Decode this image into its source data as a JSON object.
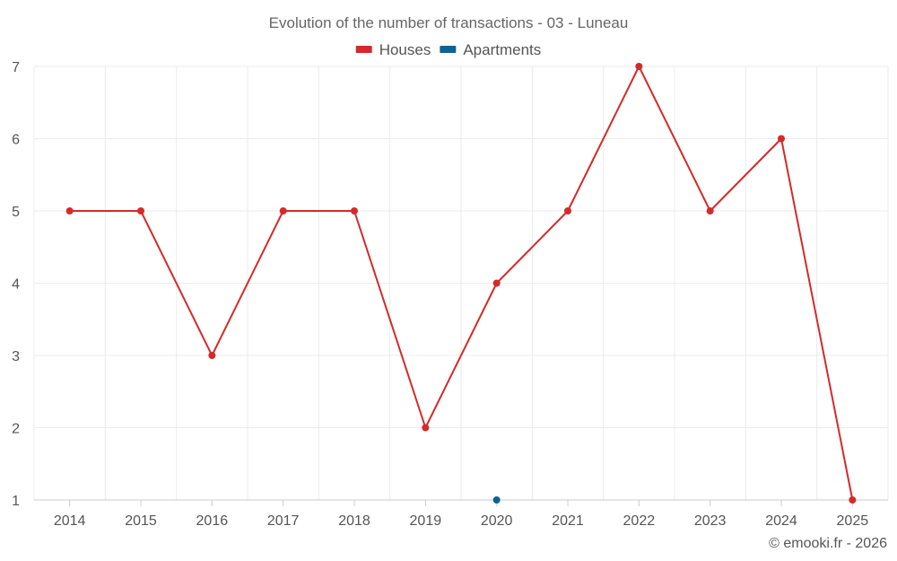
{
  "chart_data": {
    "type": "line",
    "title": "Evolution of the number of transactions - 03 - Luneau",
    "categories": [
      "2014",
      "2015",
      "2016",
      "2017",
      "2018",
      "2019",
      "2020",
      "2021",
      "2022",
      "2023",
      "2024",
      "2025"
    ],
    "ylim": [
      1,
      7
    ],
    "yticks": [
      "1",
      "2",
      "3",
      "4",
      "5",
      "6",
      "7"
    ],
    "xlabel": "",
    "ylabel": "",
    "grid": true,
    "legend_position": "top-center",
    "series": [
      {
        "name": "Houses",
        "color": "#d42a2a",
        "values": [
          5,
          5,
          3,
          5,
          5,
          2,
          4,
          5,
          7,
          5,
          6,
          1
        ]
      },
      {
        "name": "Apartments",
        "color": "#0b6496",
        "values": [
          null,
          null,
          null,
          null,
          null,
          null,
          1,
          null,
          null,
          null,
          null,
          null
        ]
      }
    ]
  },
  "credit": "© emooki.fr - 2026"
}
